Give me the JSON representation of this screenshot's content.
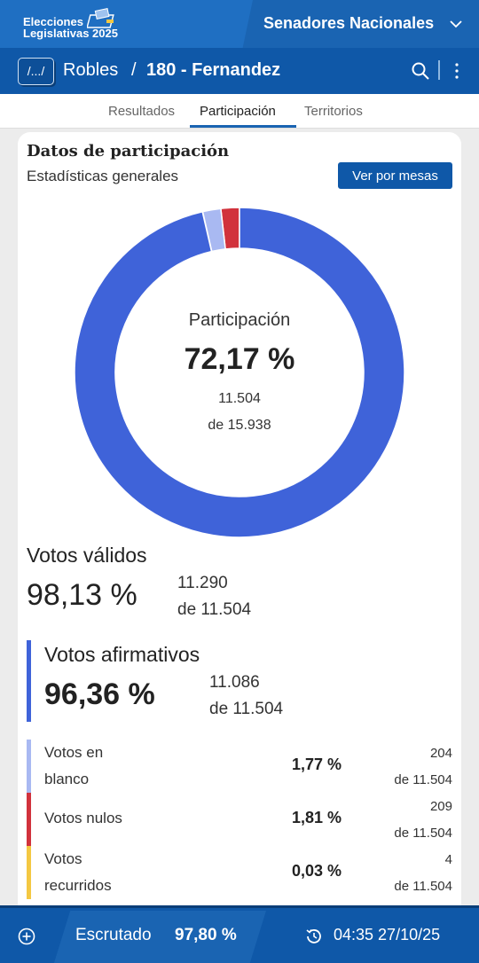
{
  "header": {
    "logo_line1": "Elecciones",
    "logo_line2": "Legislativas 2025",
    "category": "Senadores Nacionales"
  },
  "nav": {
    "crumb_button": "/.../",
    "crumb_parent": "Robles",
    "crumb_separator": "/",
    "crumb_current": "180 - Fernandez"
  },
  "tabs": [
    {
      "label": "Resultados",
      "active": false
    },
    {
      "label": "Participación",
      "active": true
    },
    {
      "label": "Territorios",
      "active": false
    }
  ],
  "card": {
    "title": "Datos de participación",
    "subtitle": "Estadísticas generales",
    "button": "Ver por mesas"
  },
  "chart_data": {
    "type": "pie",
    "center_title": "Participación",
    "center_value": "72,17 %",
    "center_count": "11.504",
    "center_total": "de 15.938",
    "slices": [
      {
        "label": "Votos afirmativos",
        "value": 96.36,
        "color": "#3f63d9"
      },
      {
        "label": "Votos en blanco",
        "value": 1.77,
        "color": "#a9b9f2"
      },
      {
        "label": "Votos nulos",
        "value": 1.81,
        "color": "#d1323c"
      },
      {
        "label": "Votos recurridos",
        "value": 0.03,
        "color": "#f4c842"
      }
    ]
  },
  "validos": {
    "title": "Votos válidos",
    "pct": "98,13 %",
    "count": "11.290",
    "total": "de 11.504"
  },
  "afirmativos": {
    "title": "Votos afirmativos",
    "pct": "96,36 %",
    "count": "11.086",
    "total": "de 11.504",
    "color": "#3f63d9"
  },
  "rows": [
    {
      "label": "Votos en blanco",
      "pct": "1,77 %",
      "count": "204",
      "total": "de 11.504",
      "color": "#a9b9f2"
    },
    {
      "label": "Votos nulos",
      "pct": "1,81 %",
      "count": "209",
      "total": "de 11.504",
      "color": "#d1323c"
    },
    {
      "label": "Votos recurridos",
      "pct": "0,03 %",
      "count": "4",
      "total": "de 11.504",
      "color": "#f4c842"
    }
  ],
  "footer": {
    "escrutado_label": "Escrutado",
    "escrutado_pct": "97,80 %",
    "timestamp": "04:35 27/10/25"
  },
  "icons": {
    "add": "plus-circle-icon",
    "search": "search-icon",
    "more": "more-vertical-icon",
    "chevron": "chevron-down-icon",
    "clock": "history-icon"
  }
}
